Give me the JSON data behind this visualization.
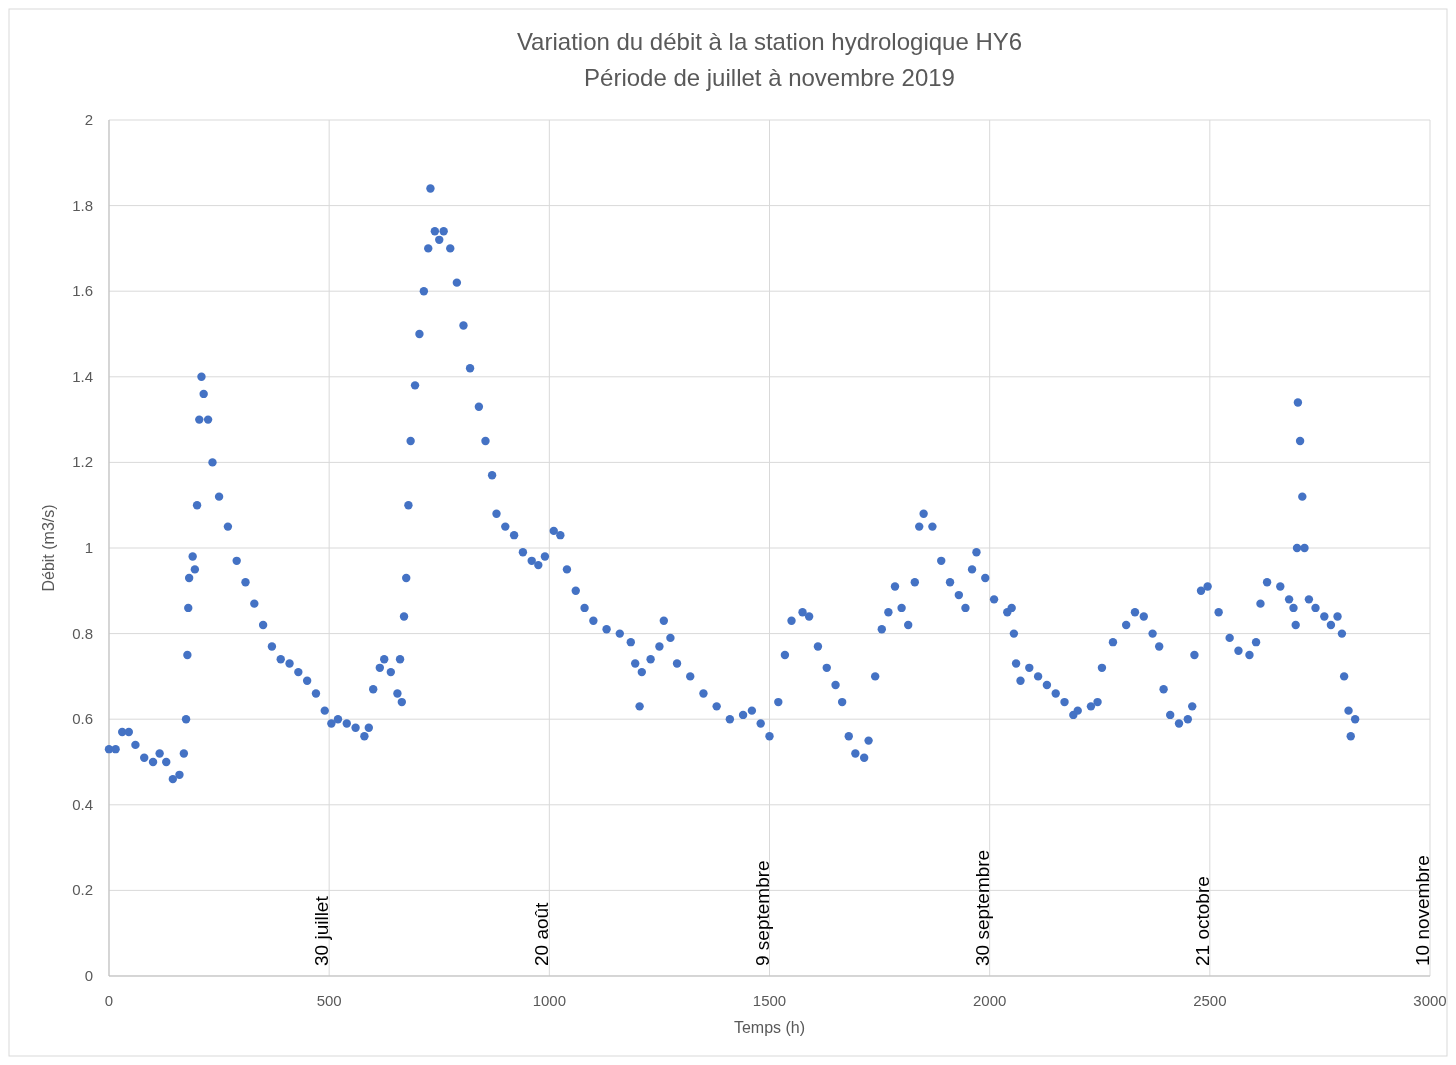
{
  "chart_data": {
    "type": "scatter",
    "title": "Variation du débit à la station hydrologique HY6",
    "subtitle": "Période de juillet à novembre 2019",
    "xlabel": "Temps (h)",
    "ylabel": "Débit (m3/s)",
    "xlim": [
      0,
      3000
    ],
    "xticks": [
      0,
      500,
      1000,
      1500,
      2000,
      2500,
      3000
    ],
    "ylim": [
      0,
      2
    ],
    "yticks": [
      0,
      0.2,
      0.4,
      0.6,
      0.8,
      1,
      1.2,
      1.4,
      1.6,
      1.8,
      2
    ],
    "grid": true,
    "marker": "circle",
    "annotations": [
      "30 juillet",
      "20 août",
      "9 septembre",
      "30 septembre",
      "21 octobre",
      "10 novembre"
    ],
    "series": [
      {
        "color": "#4472c4",
        "x": [
          0,
          15,
          30,
          45,
          60,
          80,
          100,
          115,
          130,
          145,
          160,
          170,
          175,
          178,
          180,
          182,
          190,
          195,
          200,
          205,
          210,
          215,
          225,
          235,
          250,
          270,
          290,
          310,
          330,
          350,
          370,
          390,
          410,
          430,
          450,
          470,
          490,
          505,
          520,
          540,
          560,
          580,
          590,
          600,
          615,
          625,
          640,
          655,
          661,
          665,
          670,
          675,
          680,
          685,
          695,
          705,
          715,
          725,
          730,
          740,
          750,
          760,
          775,
          790,
          805,
          820,
          840,
          855,
          870,
          880,
          900,
          920,
          940,
          960,
          975,
          990,
          1010,
          1025,
          1040,
          1060,
          1080,
          1100,
          1130,
          1160,
          1185,
          1195,
          1205,
          1210,
          1230,
          1250,
          1260,
          1275,
          1290,
          1320,
          1350,
          1380,
          1410,
          1440,
          1460,
          1480,
          1500,
          1520,
          1535,
          1550,
          1575,
          1590,
          1610,
          1630,
          1650,
          1665,
          1680,
          1695,
          1715,
          1725,
          1740,
          1755,
          1770,
          1785,
          1800,
          1815,
          1830,
          1840,
          1850,
          1870,
          1890,
          1910,
          1930,
          1945,
          1960,
          1970,
          1990,
          2010,
          2040,
          2050,
          2055,
          2060,
          2070,
          2090,
          2110,
          2130,
          2150,
          2170,
          2190,
          2200,
          2230,
          2245,
          2255,
          2280,
          2310,
          2330,
          2350,
          2370,
          2385,
          2395,
          2410,
          2430,
          2450,
          2460,
          2465,
          2480,
          2495,
          2520,
          2545,
          2565,
          2590,
          2605,
          2615,
          2630,
          2660,
          2680,
          2690,
          2695,
          2698,
          2700,
          2705,
          2710,
          2715,
          2725,
          2740,
          2760,
          2775,
          2790,
          2800,
          2805,
          2815,
          2820,
          2830
        ],
        "values": [
          0.53,
          0.53,
          0.57,
          0.57,
          0.54,
          0.51,
          0.5,
          0.52,
          0.5,
          0.46,
          0.47,
          0.52,
          0.6,
          0.75,
          0.86,
          0.93,
          0.98,
          0.95,
          1.1,
          1.3,
          1.4,
          1.36,
          1.3,
          1.2,
          1.12,
          1.05,
          0.97,
          0.92,
          0.87,
          0.82,
          0.77,
          0.74,
          0.73,
          0.71,
          0.69,
          0.66,
          0.62,
          0.59,
          0.6,
          0.59,
          0.58,
          0.56,
          0.58,
          0.67,
          0.72,
          0.74,
          0.71,
          0.66,
          0.74,
          0.64,
          0.84,
          0.93,
          1.1,
          1.25,
          1.38,
          1.5,
          1.6,
          1.7,
          1.84,
          1.74,
          1.72,
          1.74,
          1.7,
          1.62,
          1.52,
          1.42,
          1.33,
          1.25,
          1.17,
          1.08,
          1.05,
          1.03,
          0.99,
          0.97,
          0.96,
          0.98,
          1.04,
          1.03,
          0.95,
          0.9,
          0.86,
          0.83,
          0.81,
          0.8,
          0.78,
          0.73,
          0.63,
          0.71,
          0.74,
          0.77,
          0.83,
          0.79,
          0.73,
          0.7,
          0.66,
          0.63,
          0.6,
          0.61,
          0.62,
          0.59,
          0.56,
          0.64,
          0.75,
          0.83,
          0.85,
          0.84,
          0.77,
          0.72,
          0.68,
          0.64,
          0.56,
          0.52,
          0.51,
          0.55,
          0.7,
          0.81,
          0.85,
          0.91,
          0.86,
          0.82,
          0.92,
          1.05,
          1.08,
          1.05,
          0.97,
          0.92,
          0.89,
          0.86,
          0.95,
          0.99,
          0.93,
          0.88,
          0.85,
          0.86,
          0.8,
          0.73,
          0.69,
          0.72,
          0.7,
          0.68,
          0.66,
          0.64,
          0.61,
          0.62,
          0.63,
          0.64,
          0.72,
          0.78,
          0.82,
          0.85,
          0.84,
          0.8,
          0.77,
          0.67,
          0.61,
          0.59,
          0.6,
          0.63,
          0.75,
          0.9,
          0.91,
          0.85,
          0.79,
          0.76,
          0.75,
          0.78,
          0.87,
          0.92,
          0.91,
          0.88,
          0.86,
          0.82,
          1,
          1.34,
          1.25,
          1.12,
          1,
          0.88,
          0.86,
          0.84,
          0.82,
          0.84,
          0.8,
          0.7,
          0.62,
          0.56,
          0.6
        ]
      }
    ]
  }
}
